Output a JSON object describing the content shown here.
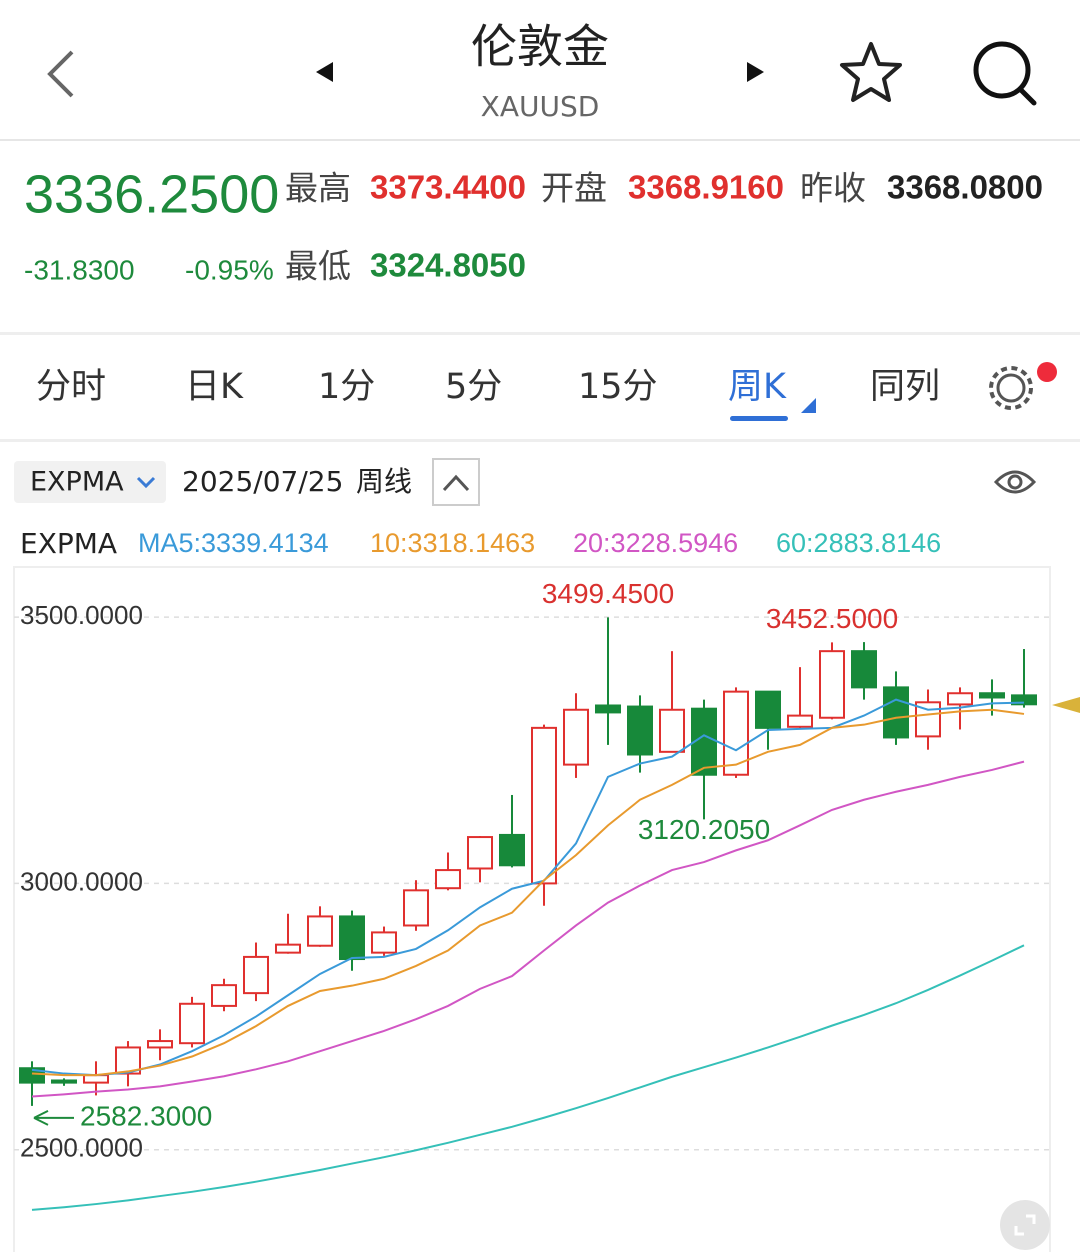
{
  "header": {
    "title": "伦敦金",
    "symbol": "XAUUSD"
  },
  "quote": {
    "price": "3336.2500",
    "price_color": "#1e8a3c",
    "change": "-31.8300",
    "change_pct": "-0.95%",
    "change_color": "#1e8a3c",
    "items": [
      {
        "label": "最高",
        "value": "3373.4400",
        "color": "#e0302e"
      },
      {
        "label": "开盘",
        "value": "3368.9160",
        "color": "#e0302e"
      },
      {
        "label": "昨收",
        "value": "3368.0800",
        "color": "#222222"
      },
      {
        "label": "最低",
        "value": "3324.8050",
        "color": "#1e8a3c"
      }
    ]
  },
  "tabs": [
    {
      "label": "分时"
    },
    {
      "label": "日K"
    },
    {
      "label": "1分"
    },
    {
      "label": "5分"
    },
    {
      "label": "15分"
    },
    {
      "label": "周K",
      "active": true
    },
    {
      "label": "同列"
    }
  ],
  "toolbar": {
    "indicator": "EXPMA",
    "date": "2025/07/25",
    "period": "周线"
  },
  "chart_data": {
    "type": "candlestick",
    "indicator": "EXPMA",
    "ylim": [
      2308,
      3594
    ],
    "yticks": [
      {
        "value": 3500,
        "label": "3500.0000"
      },
      {
        "value": 3000,
        "label": "3000.0000"
      },
      {
        "value": 2500,
        "label": "2500.0000"
      }
    ],
    "grid": true,
    "up_color": "#e0302e",
    "down_color": "#17893a",
    "open": [
      2653,
      2630,
      2626,
      2643,
      2692,
      2700,
      2770,
      2794,
      2870,
      2883,
      2938,
      2870,
      2921,
      2991,
      3028,
      3091,
      3000,
      3223,
      3334,
      3332,
      3247,
      3328,
      3204,
      3360,
      3294,
      3311,
      3436,
      3368,
      3276,
      3336,
      3357,
      3353
    ],
    "high": [
      2666,
      2634,
      2666,
      2704,
      2726,
      2787,
      2821,
      2889,
      2943,
      2957,
      2949,
      2919,
      3006,
      3058,
      3089,
      3166,
      3298,
      3357,
      3499.45,
      3353,
      3436,
      3345,
      3368,
      3360,
      3406,
      3452.5,
      3453,
      3398,
      3364,
      3368,
      3383,
      3440
    ],
    "low": [
      2582.3,
      2620,
      2602,
      2619,
      2668,
      2692,
      2760,
      2779,
      2868,
      2881,
      2836,
      2864,
      2911,
      2987,
      3002,
      3030,
      2958,
      3198,
      3260,
      3208,
      3247,
      3120.205,
      3198,
      3251,
      3289,
      3308,
      3345,
      3260,
      3251,
      3289,
      3315,
      3330
    ],
    "close": [
      2626,
      2626,
      2640,
      2692,
      2704,
      2774,
      2809,
      2862,
      2885,
      2938,
      2858,
      2908,
      2987,
      3025,
      3087,
      3034,
      3292,
      3326,
      3321,
      3242,
      3326,
      3204,
      3360,
      3292,
      3315,
      3436,
      3368,
      3274,
      3340,
      3357,
      3349,
      3336.25
    ],
    "series": [
      {
        "name": "MA5:",
        "color": "#3a9ad9",
        "values": [
          2650,
          2643,
          2640,
          2645,
          2660,
          2685,
          2715,
          2750,
          2790,
          2830,
          2860,
          2862,
          2877,
          2912,
          2955,
          2990,
          3005,
          3075,
          3200,
          3225,
          3238,
          3278,
          3250,
          3288,
          3290,
          3292,
          3315,
          3345,
          3326,
          3330,
          3338,
          3339.4134
        ]
      },
      {
        "name": "10:",
        "color": "#e89a2e",
        "values": [
          2643,
          2640,
          2640,
          2647,
          2658,
          2675,
          2700,
          2732,
          2770,
          2798,
          2808,
          2821,
          2845,
          2874,
          2921,
          2945,
          3006,
          3053,
          3109,
          3157,
          3185,
          3217,
          3223,
          3247,
          3260,
          3292,
          3298,
          3311,
          3317,
          3323,
          3326,
          3318.1463
        ]
      },
      {
        "name": "20:",
        "color": "#d156c4",
        "values": [
          2600,
          2604,
          2609,
          2613,
          2619,
          2628,
          2638,
          2651,
          2666,
          2685,
          2704,
          2723,
          2745,
          2770,
          2802,
          2826,
          2874,
          2921,
          2964,
          2996,
          3025,
          3040,
          3062,
          3081,
          3109,
          3138,
          3157,
          3172,
          3185,
          3200,
          3213,
          3228.5946
        ]
      },
      {
        "name": "60:",
        "color": "#35c0b8",
        "values": [
          2387,
          2392,
          2398,
          2405,
          2413,
          2421,
          2430,
          2440,
          2451,
          2462,
          2474,
          2486,
          2499,
          2513,
          2528,
          2543,
          2560,
          2578,
          2597,
          2617,
          2637,
          2655,
          2673,
          2692,
          2712,
          2733,
          2753,
          2775,
          2800,
          2827,
          2855,
          2883.8146
        ]
      }
    ],
    "annotations": [
      {
        "label": "3499.4500",
        "value": 3499.45,
        "color": "#d9312f"
      },
      {
        "label": "3452.5000",
        "value": 3452.5,
        "color": "#d9312f"
      },
      {
        "label": "3120.2050",
        "value": 3120.205,
        "color": "#1e8a3c"
      },
      {
        "label": "2582.3000",
        "value": 2582.3,
        "color": "#1e8a3c"
      }
    ]
  }
}
